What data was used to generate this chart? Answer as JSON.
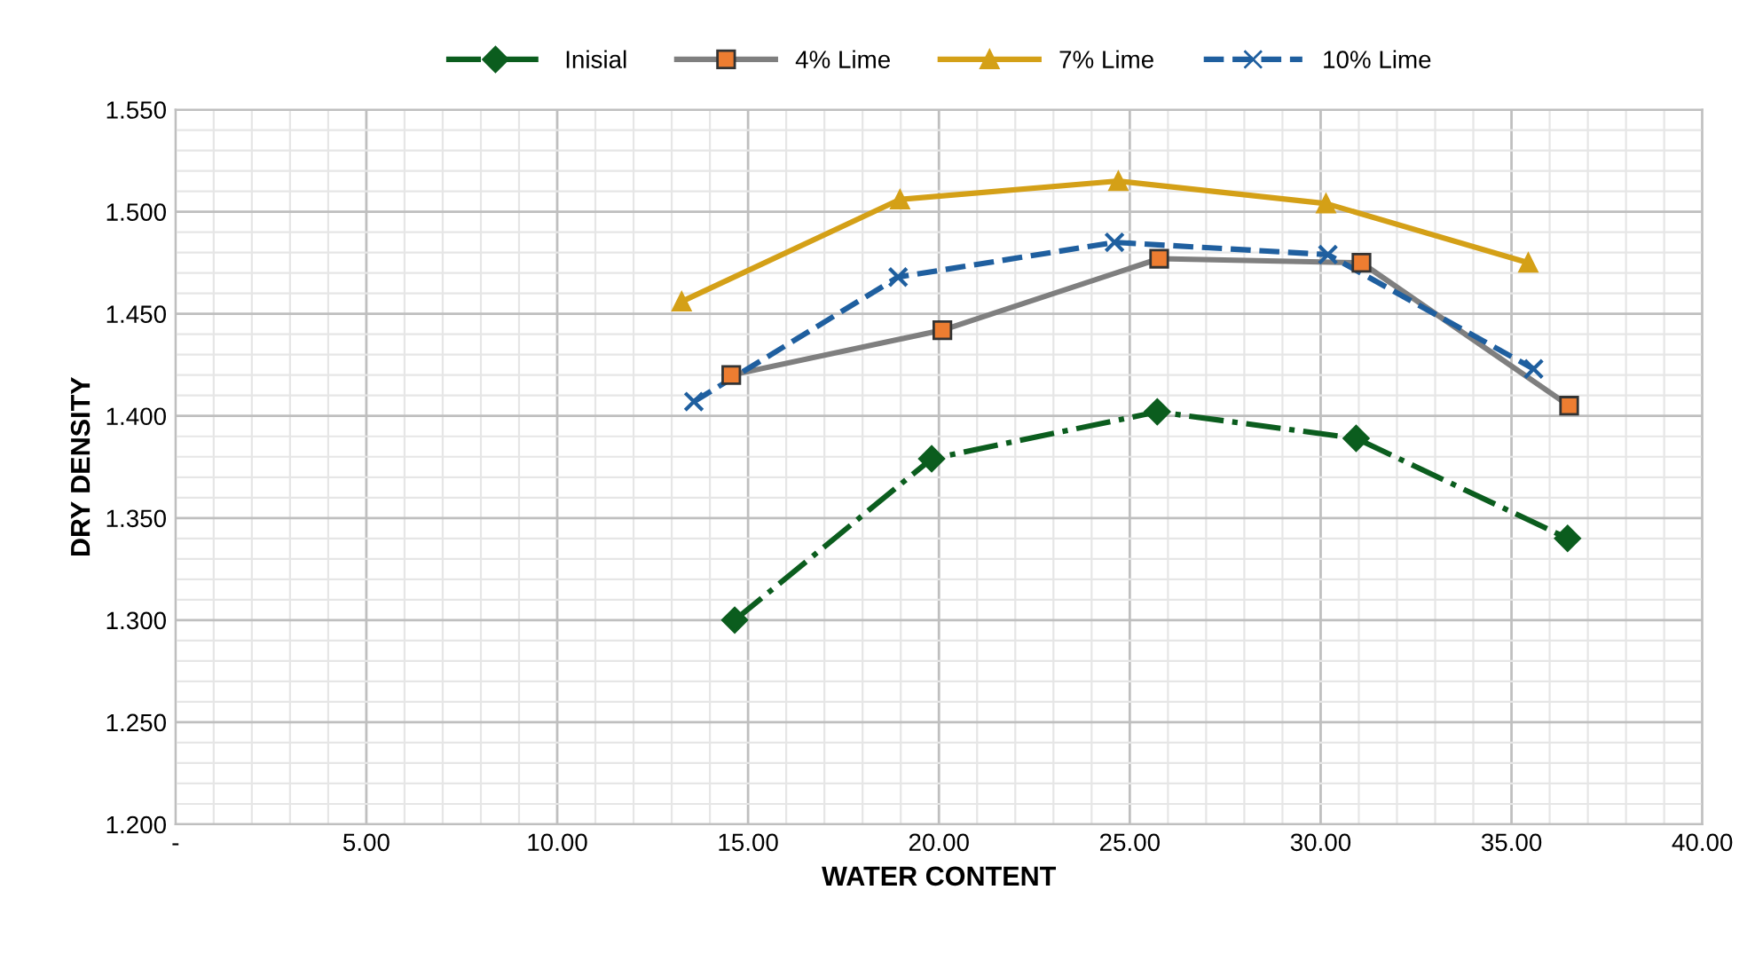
{
  "chart_data": {
    "type": "line",
    "xlabel": "WATER CONTENT",
    "ylabel": "DRY DENSITY",
    "xlim": [
      0,
      40
    ],
    "ylim": [
      1.2,
      1.55
    ],
    "xticks": [
      {
        "value": 0,
        "label": "-"
      },
      {
        "value": 5,
        "label": "5.00"
      },
      {
        "value": 10,
        "label": "10.00"
      },
      {
        "value": 15,
        "label": "15.00"
      },
      {
        "value": 20,
        "label": "20.00"
      },
      {
        "value": 25,
        "label": "25.00"
      },
      {
        "value": 30,
        "label": "30.00"
      },
      {
        "value": 35,
        "label": "35.00"
      },
      {
        "value": 40,
        "label": "40.00"
      }
    ],
    "yticks": [
      {
        "value": 1.2,
        "label": "1.200"
      },
      {
        "value": 1.25,
        "label": "1.250"
      },
      {
        "value": 1.3,
        "label": "1.300"
      },
      {
        "value": 1.35,
        "label": "1.350"
      },
      {
        "value": 1.4,
        "label": "1.400"
      },
      {
        "value": 1.45,
        "label": "1.450"
      },
      {
        "value": 1.5,
        "label": "1.500"
      },
      {
        "value": 1.55,
        "label": "1.550"
      }
    ],
    "grid": true,
    "legend": "top",
    "series": [
      {
        "name": "Inisial",
        "color": "#0b5d1e",
        "marker": "diamond",
        "line_style": "dashdot",
        "x": [
          14.65,
          19.81,
          25.72,
          30.93,
          36.47
        ],
        "values": [
          1.3,
          1.379,
          1.402,
          1.389,
          1.34
        ]
      },
      {
        "name": "4% Lime",
        "color": "#7f7f7f",
        "marker": "square",
        "line_style": "solid",
        "x": [
          14.56,
          20.09,
          25.77,
          31.07,
          36.51
        ],
        "values": [
          1.42,
          1.442,
          1.477,
          1.475,
          1.405
        ]
      },
      {
        "name": "7% Lime",
        "color": "#d4a017",
        "marker": "triangle",
        "line_style": "solid",
        "x": [
          13.26,
          18.98,
          24.7,
          30.14,
          35.44
        ],
        "values": [
          1.456,
          1.506,
          1.515,
          1.504,
          1.475
        ]
      },
      {
        "name": "10% Lime",
        "color": "#1f5f9f",
        "marker": "cross",
        "line_style": "dashed",
        "x": [
          13.58,
          18.93,
          24.6,
          30.19,
          35.58
        ],
        "values": [
          1.407,
          1.468,
          1.485,
          1.479,
          1.423
        ]
      }
    ]
  }
}
